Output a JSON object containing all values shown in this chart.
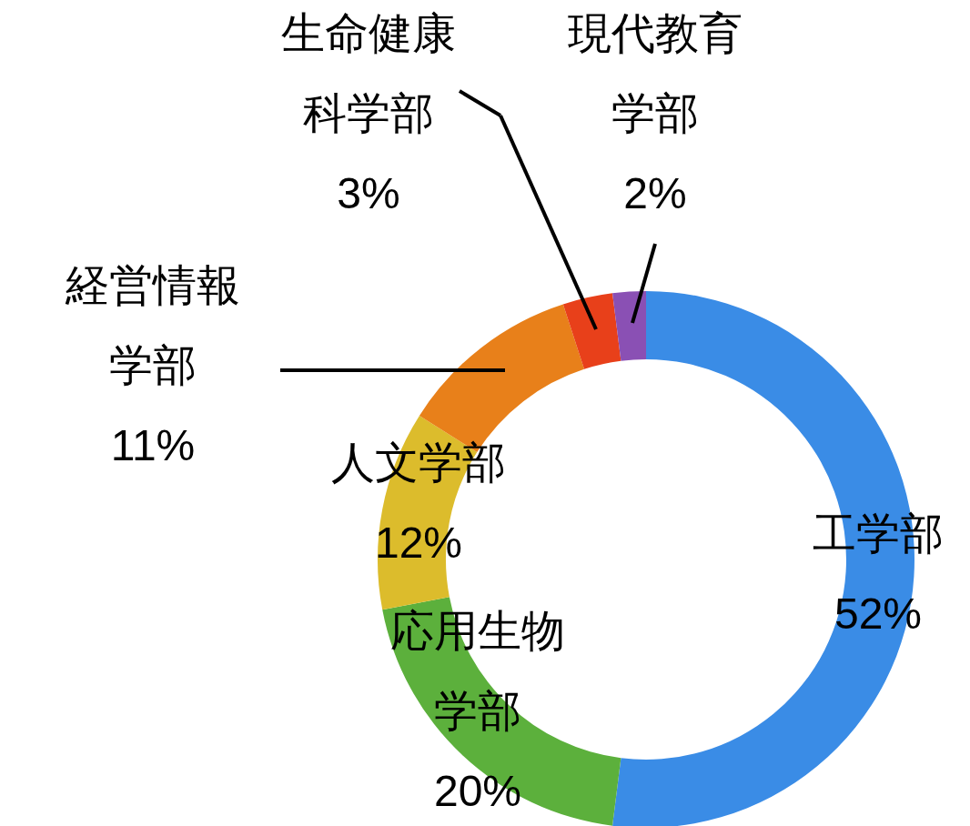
{
  "chart_data": {
    "type": "donut",
    "categories": [
      "工学部",
      "応用生物学部",
      "人文学部",
      "経営情報学部",
      "生命健康科学部",
      "現代教育学部"
    ],
    "values": [
      52,
      20,
      12,
      11,
      3,
      2
    ],
    "value_labels": [
      "52%",
      "20%",
      "12%",
      "11%",
      "3%",
      "2%"
    ],
    "colors": [
      "#3a8ce6",
      "#5cb03c",
      "#dcbc2c",
      "#e8801a",
      "#e8401a",
      "#8a50b4"
    ]
  }
}
